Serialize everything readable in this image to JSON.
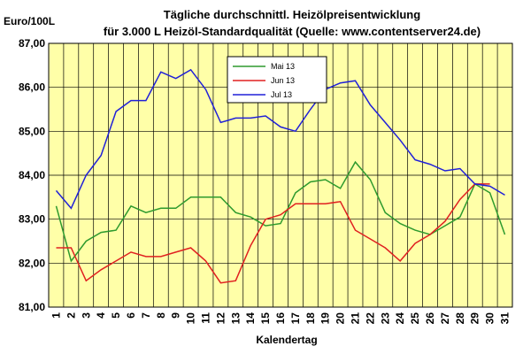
{
  "chart_data": {
    "type": "line",
    "title": "Tägliche durchschnittl. Heizölpreisentwicklung",
    "subtitle": "für 3.000 L Heizöl-Standardqualität (Quelle: www.contentserver24.de)",
    "ylabel": "Euro/100L",
    "xlabel": "Kalendertag",
    "x": [
      1,
      2,
      3,
      4,
      5,
      6,
      7,
      8,
      9,
      10,
      11,
      12,
      13,
      14,
      15,
      16,
      17,
      18,
      19,
      20,
      21,
      22,
      23,
      24,
      25,
      26,
      27,
      28,
      29,
      30,
      31
    ],
    "yticks": [
      "81,00",
      "82,00",
      "83,00",
      "84,00",
      "85,00",
      "86,00",
      "87,00"
    ],
    "ylim": [
      81,
      87
    ],
    "grid": true,
    "legend_position": "top-center",
    "series": [
      {
        "name": "Mai 13",
        "color": "#2e9a2e",
        "values": [
          83.3,
          82.05,
          82.5,
          82.7,
          82.75,
          83.3,
          83.15,
          83.25,
          83.25,
          83.5,
          83.5,
          83.5,
          83.15,
          83.05,
          82.85,
          82.9,
          83.6,
          83.85,
          83.9,
          83.7,
          84.3,
          83.9,
          83.15,
          82.9,
          82.75,
          82.65,
          82.85,
          83.05,
          83.8,
          83.6,
          82.65
        ]
      },
      {
        "name": "Jun 13",
        "color": "#e02020",
        "values": [
          82.35,
          82.35,
          81.6,
          81.85,
          82.05,
          82.25,
          82.15,
          82.15,
          82.25,
          82.35,
          82.05,
          81.55,
          81.6,
          82.4,
          83.0,
          83.1,
          83.35,
          83.35,
          83.35,
          83.4,
          82.75,
          82.55,
          82.35,
          82.05,
          82.45,
          82.65,
          82.95,
          83.45,
          83.8,
          83.8,
          null
        ]
      },
      {
        "name": "Jul 13",
        "color": "#2020d8",
        "values": [
          83.65,
          83.25,
          84.0,
          84.45,
          85.45,
          85.7,
          85.7,
          86.35,
          86.2,
          86.4,
          85.95,
          85.2,
          85.3,
          85.3,
          85.35,
          85.1,
          85.0,
          85.5,
          85.95,
          86.1,
          86.15,
          85.6,
          85.2,
          84.8,
          84.35,
          84.25,
          84.1,
          84.15,
          83.8,
          83.75,
          83.55
        ]
      }
    ]
  }
}
